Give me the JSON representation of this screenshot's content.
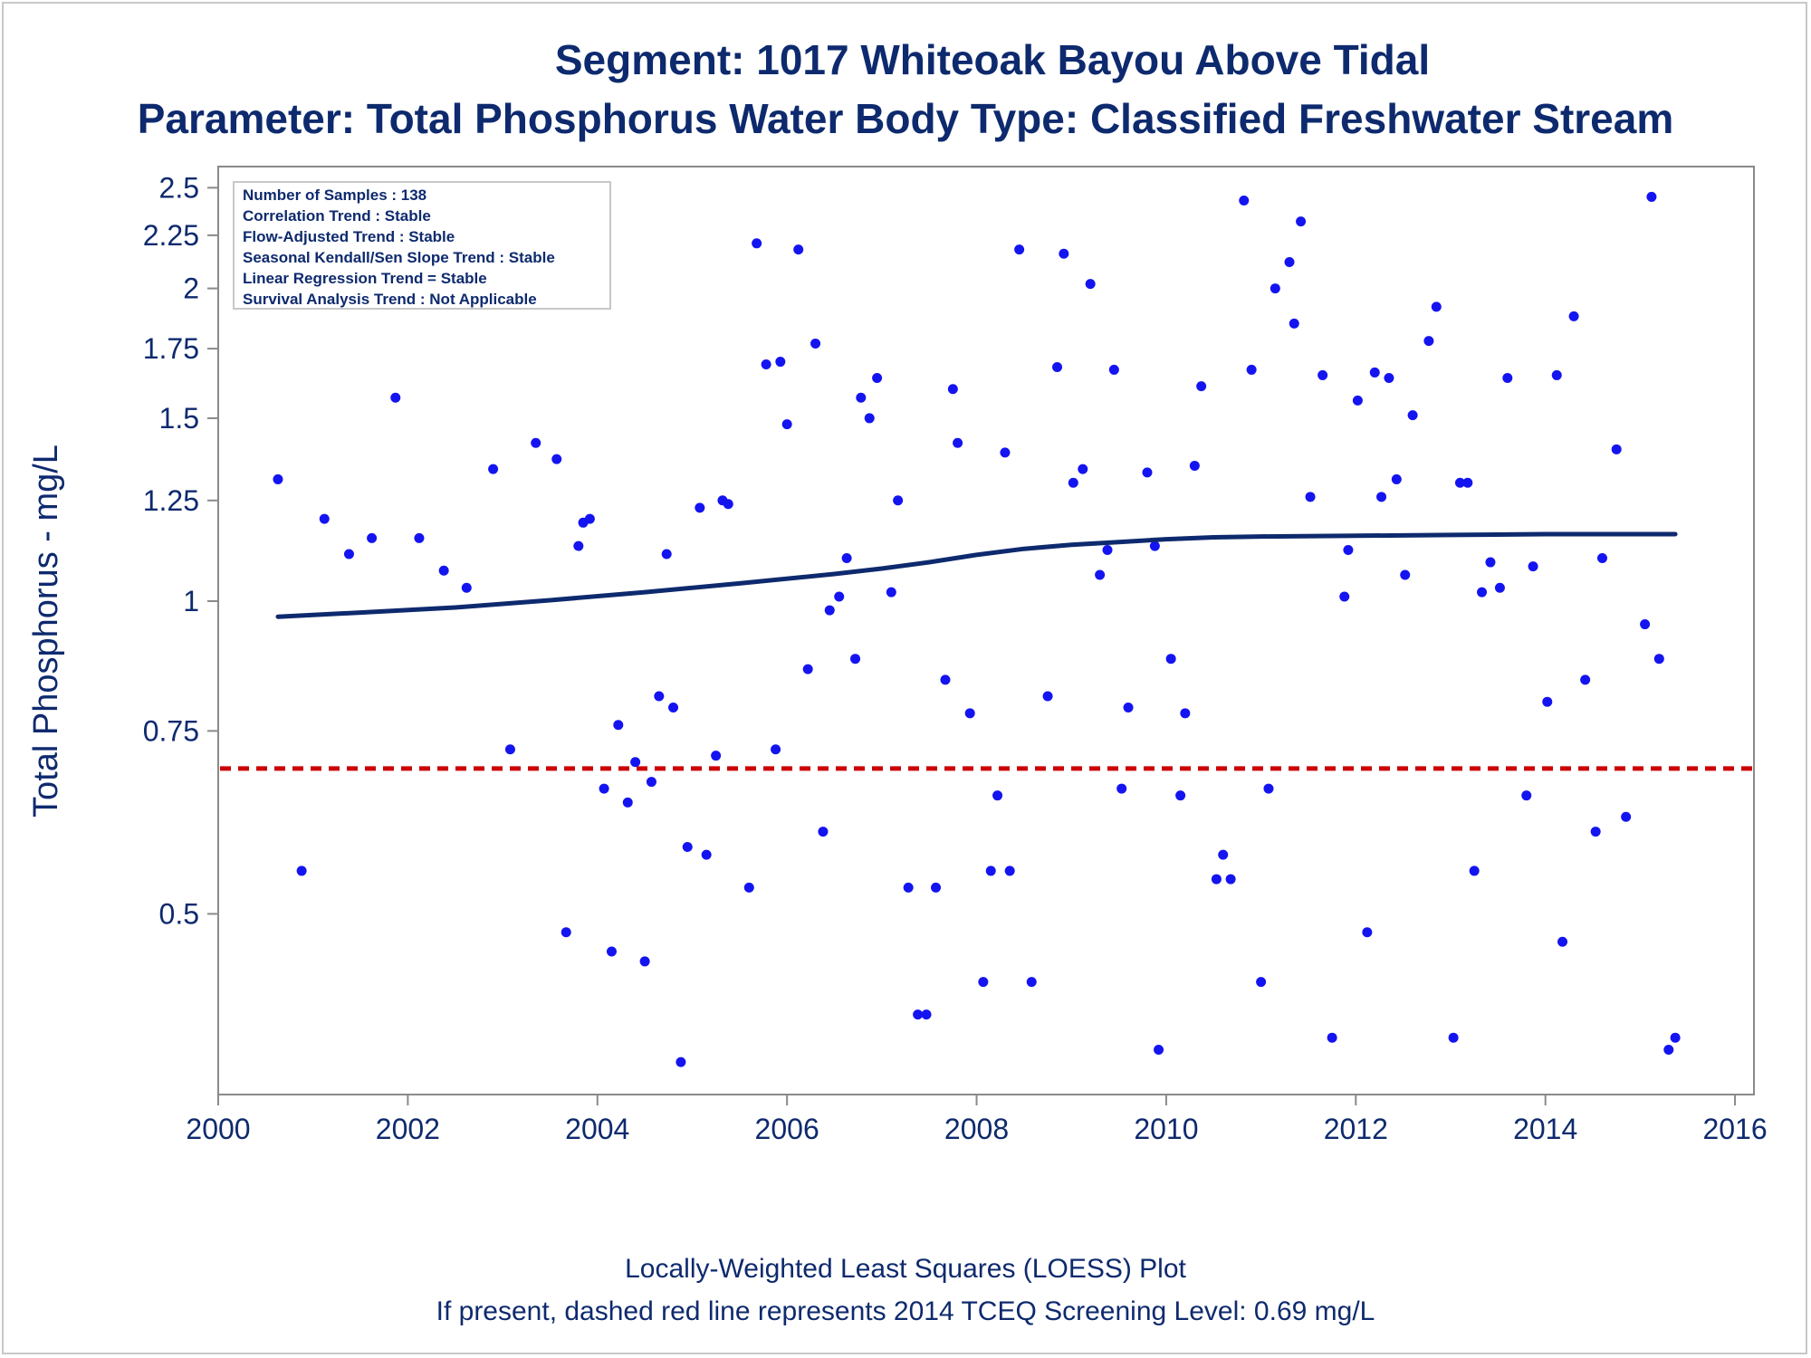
{
  "title": "Segment: 1017  Whiteoak Bayou Above Tidal",
  "subtitle": "Parameter: Total Phosphorus   Water Body Type: Classified Freshwater Stream",
  "footnotes": [
    "Locally-Weighted Least Squares (LOESS) Plot",
    "If present, dashed red line represents 2014 TCEQ Screening Level: 0.69 mg/L"
  ],
  "stats_box": [
    "Number of Samples : 138",
    "Correlation Trend : Stable",
    "Flow-Adjusted Trend : Stable",
    "Seasonal Kendall/Sen Slope Trend : Stable",
    "Linear Regression Trend = Stable",
    "Survival Analysis Trend : Not Applicable"
  ],
  "colors": {
    "text": "#0e2a6e",
    "points": "#1414f0",
    "loess": "#0e2a6e",
    "screening_line": "#cc0000",
    "axis": "#8a8a8a"
  },
  "chart_data": {
    "type": "scatter",
    "xlabel": "",
    "ylabel": "Total Phosphorus - mg/L",
    "y_scale": "log",
    "xlim": [
      2000.0,
      2016.2
    ],
    "ylim": [
      0.335,
      2.62
    ],
    "x_ticks": [
      2000,
      2002,
      2004,
      2006,
      2008,
      2010,
      2012,
      2014,
      2016
    ],
    "x_tick_labels": [
      "2000",
      "2002",
      "2004",
      "2006",
      "2008",
      "2010",
      "2012",
      "2014",
      "2016"
    ],
    "y_ticks": [
      0.5,
      0.75,
      1,
      1.25,
      1.5,
      1.75,
      2,
      2.25,
      2.5
    ],
    "y_tick_labels": [
      "0.5",
      "0.75",
      "1",
      "1.25",
      "1.5",
      "1.75",
      "2",
      "2.25",
      "2.5"
    ],
    "grid": false,
    "screening_level": 0.69,
    "points": [
      [
        2000.63,
        1.31
      ],
      [
        2000.88,
        0.55
      ],
      [
        2001.12,
        1.2
      ],
      [
        2001.38,
        1.11
      ],
      [
        2001.62,
        1.15
      ],
      [
        2001.87,
        1.57
      ],
      [
        2002.12,
        1.15
      ],
      [
        2002.38,
        1.07
      ],
      [
        2002.62,
        1.03
      ],
      [
        2002.9,
        1.34
      ],
      [
        2003.08,
        0.72
      ],
      [
        2003.35,
        1.42
      ],
      [
        2003.57,
        1.37
      ],
      [
        2003.67,
        0.48
      ],
      [
        2003.8,
        1.13
      ],
      [
        2003.85,
        1.19
      ],
      [
        2003.92,
        1.2
      ],
      [
        2004.07,
        0.66
      ],
      [
        2004.15,
        0.46
      ],
      [
        2004.22,
        0.76
      ],
      [
        2004.32,
        0.64
      ],
      [
        2004.4,
        0.7
      ],
      [
        2004.5,
        0.45
      ],
      [
        2004.57,
        0.67
      ],
      [
        2004.65,
        0.81
      ],
      [
        2004.73,
        1.11
      ],
      [
        2004.8,
        0.79
      ],
      [
        2004.88,
        0.36
      ],
      [
        2004.95,
        0.58
      ],
      [
        2005.08,
        1.23
      ],
      [
        2005.15,
        0.57
      ],
      [
        2005.25,
        0.71
      ],
      [
        2005.32,
        1.25
      ],
      [
        2005.38,
        1.24
      ],
      [
        2005.6,
        0.53
      ],
      [
        2005.68,
        2.21
      ],
      [
        2005.78,
        1.69
      ],
      [
        2005.88,
        0.72
      ],
      [
        2005.93,
        1.7
      ],
      [
        2006.0,
        1.48
      ],
      [
        2006.12,
        2.18
      ],
      [
        2006.22,
        0.86
      ],
      [
        2006.3,
        1.77
      ],
      [
        2006.38,
        0.6
      ],
      [
        2006.45,
        0.98
      ],
      [
        2006.55,
        1.01
      ],
      [
        2006.63,
        1.1
      ],
      [
        2006.72,
        0.88
      ],
      [
        2006.78,
        1.57
      ],
      [
        2006.87,
        1.5
      ],
      [
        2006.95,
        1.64
      ],
      [
        2007.1,
        1.02
      ],
      [
        2007.17,
        1.25
      ],
      [
        2007.28,
        0.53
      ],
      [
        2007.38,
        0.4
      ],
      [
        2007.47,
        0.4
      ],
      [
        2007.57,
        0.53
      ],
      [
        2007.67,
        0.84
      ],
      [
        2007.75,
        1.6
      ],
      [
        2007.8,
        1.42
      ],
      [
        2007.93,
        0.78
      ],
      [
        2008.07,
        0.43
      ],
      [
        2008.15,
        0.55
      ],
      [
        2008.22,
        0.65
      ],
      [
        2008.3,
        1.39
      ],
      [
        2008.35,
        0.55
      ],
      [
        2008.45,
        2.18
      ],
      [
        2008.58,
        0.43
      ],
      [
        2008.75,
        0.81
      ],
      [
        2008.85,
        1.68
      ],
      [
        2008.92,
        2.16
      ],
      [
        2009.02,
        1.3
      ],
      [
        2009.12,
        1.34
      ],
      [
        2009.2,
        2.02
      ],
      [
        2009.3,
        1.06
      ],
      [
        2009.38,
        1.12
      ],
      [
        2009.45,
        1.67
      ],
      [
        2009.53,
        0.66
      ],
      [
        2009.6,
        0.79
      ],
      [
        2009.8,
        1.33
      ],
      [
        2009.88,
        1.13
      ],
      [
        2009.92,
        0.37
      ],
      [
        2010.05,
        0.88
      ],
      [
        2010.15,
        0.65
      ],
      [
        2010.2,
        0.78
      ],
      [
        2010.3,
        1.35
      ],
      [
        2010.37,
        1.61
      ],
      [
        2010.53,
        0.54
      ],
      [
        2010.6,
        0.57
      ],
      [
        2010.68,
        0.54
      ],
      [
        2010.82,
        2.43
      ],
      [
        2010.9,
        1.67
      ],
      [
        2011.0,
        0.43
      ],
      [
        2011.08,
        0.66
      ],
      [
        2011.15,
        2.0
      ],
      [
        2011.3,
        2.12
      ],
      [
        2011.35,
        1.85
      ],
      [
        2011.42,
        2.32
      ],
      [
        2011.52,
        1.26
      ],
      [
        2011.65,
        1.65
      ],
      [
        2011.75,
        0.38
      ],
      [
        2011.88,
        1.01
      ],
      [
        2011.92,
        1.12
      ],
      [
        2012.02,
        1.56
      ],
      [
        2012.12,
        0.48
      ],
      [
        2012.2,
        1.66
      ],
      [
        2012.27,
        1.26
      ],
      [
        2012.35,
        1.64
      ],
      [
        2012.43,
        1.31
      ],
      [
        2012.52,
        1.06
      ],
      [
        2012.6,
        1.51
      ],
      [
        2012.77,
        1.78
      ],
      [
        2012.85,
        1.92
      ],
      [
        2013.03,
        0.38
      ],
      [
        2013.1,
        1.3
      ],
      [
        2013.18,
        1.3
      ],
      [
        2013.25,
        0.55
      ],
      [
        2013.33,
        1.02
      ],
      [
        2013.42,
        1.09
      ],
      [
        2013.52,
        1.03
      ],
      [
        2013.6,
        1.64
      ],
      [
        2013.8,
        0.65
      ],
      [
        2013.87,
        1.08
      ],
      [
        2014.02,
        0.8
      ],
      [
        2014.12,
        1.65
      ],
      [
        2014.18,
        0.47
      ],
      [
        2014.3,
        1.88
      ],
      [
        2014.42,
        0.84
      ],
      [
        2014.53,
        0.6
      ],
      [
        2014.6,
        1.1
      ],
      [
        2014.75,
        1.4
      ],
      [
        2014.85,
        0.62
      ],
      [
        2015.05,
        0.95
      ],
      [
        2015.12,
        2.45
      ],
      [
        2015.2,
        0.88
      ],
      [
        2015.3,
        0.37
      ],
      [
        2015.37,
        0.38
      ]
    ],
    "loess": {
      "x": [
        2000.63,
        2001.5,
        2002.5,
        2003.5,
        2004.5,
        2005.5,
        2006.5,
        2007.0,
        2007.5,
        2008.0,
        2008.5,
        2009.0,
        2009.5,
        2010.0,
        2010.5,
        2011.0,
        2012.0,
        2013.0,
        2014.0,
        2015.37
      ],
      "y": [
        0.966,
        0.975,
        0.986,
        1.002,
        1.02,
        1.04,
        1.062,
        1.075,
        1.09,
        1.108,
        1.123,
        1.133,
        1.14,
        1.147,
        1.152,
        1.154,
        1.156,
        1.158,
        1.16,
        1.16
      ]
    }
  }
}
